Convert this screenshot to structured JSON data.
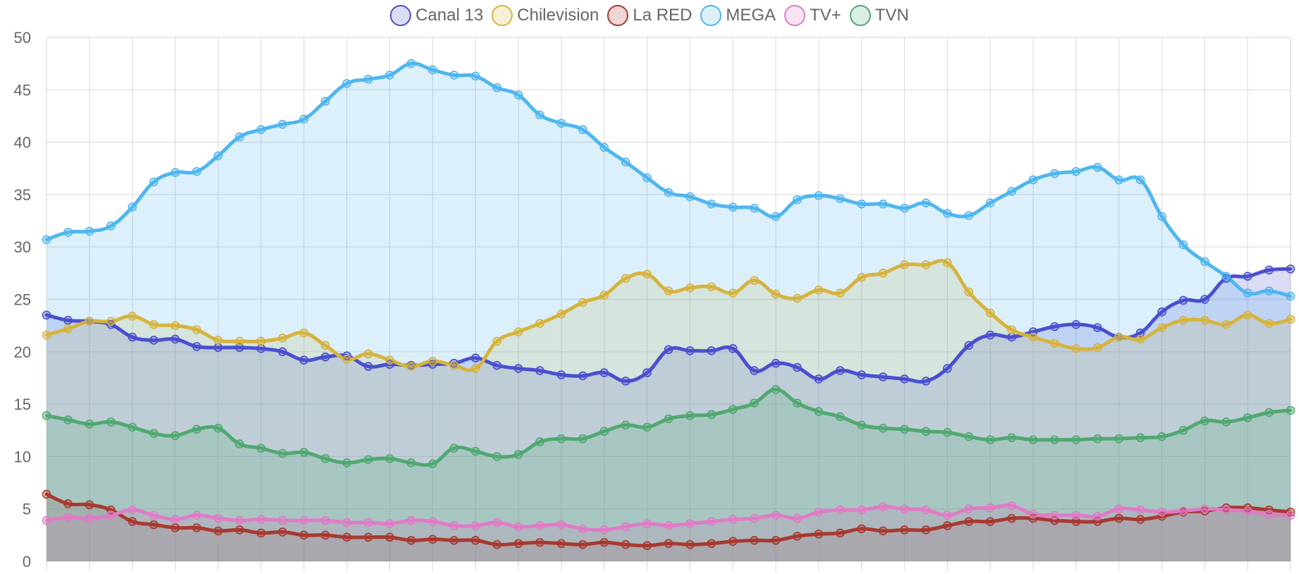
{
  "chart_data": {
    "type": "area",
    "ylim": [
      0,
      50
    ],
    "yticks": [
      0,
      5,
      10,
      15,
      20,
      25,
      30,
      35,
      40,
      45,
      50
    ],
    "grid": true,
    "legend_position": "top-center",
    "x": [
      0,
      1,
      2,
      3,
      4,
      5,
      6,
      7,
      8,
      9,
      10,
      11,
      12,
      13,
      14,
      15,
      16,
      17,
      18,
      19,
      20,
      21,
      22,
      23,
      24,
      25,
      26,
      27,
      28,
      29,
      30,
      31,
      32,
      33,
      34,
      35,
      36,
      37,
      38,
      39,
      40,
      41,
      42,
      43,
      44,
      45,
      46,
      47,
      48,
      49,
      50,
      51,
      52,
      53,
      54,
      55,
      56,
      57,
      58
    ],
    "series": [
      {
        "name": "Canal 13",
        "color": "#4a4fcf",
        "fill": "rgba(74,79,207,0.2)",
        "values": [
          23.5,
          23.0,
          22.9,
          22.6,
          21.4,
          21.1,
          21.2,
          20.5,
          20.4,
          20.4,
          20.3,
          20.0,
          19.2,
          19.5,
          19.6,
          18.6,
          18.8,
          18.7,
          18.8,
          18.9,
          19.4,
          18.7,
          18.4,
          18.2,
          17.8,
          17.7,
          18.0,
          17.2,
          18.0,
          20.2,
          20.1,
          20.1,
          20.3,
          18.2,
          18.9,
          18.5,
          17.4,
          18.2,
          17.8,
          17.6,
          17.4,
          17.2,
          18.4,
          20.6,
          21.6,
          21.4,
          21.9,
          22.4,
          22.6,
          22.3,
          21.4,
          21.8,
          23.8,
          24.9,
          25.0,
          27.0,
          27.2,
          27.8,
          27.9
        ]
      },
      {
        "name": "Chilevision",
        "color": "#d6b33d",
        "fill": "rgba(214,179,61,0.2)",
        "values": [
          21.6,
          22.2,
          22.9,
          22.9,
          23.4,
          22.6,
          22.5,
          22.1,
          21.1,
          21.0,
          21.0,
          21.3,
          21.8,
          20.6,
          19.3,
          19.8,
          19.2,
          18.6,
          19.1,
          18.7,
          18.4,
          21.0,
          21.9,
          22.7,
          23.6,
          24.7,
          25.4,
          27.0,
          27.4,
          25.8,
          26.1,
          26.2,
          25.6,
          26.8,
          25.5,
          25.1,
          25.9,
          25.6,
          27.1,
          27.5,
          28.3,
          28.3,
          28.5,
          25.7,
          23.7,
          22.1,
          21.4,
          20.8,
          20.3,
          20.4,
          21.4,
          21.2,
          22.3,
          23.0,
          23.0,
          22.6,
          23.5,
          22.7,
          23.1
        ]
      },
      {
        "name": "La RED",
        "color": "#a8392f",
        "fill": "rgba(168,57,47,0.2)",
        "values": [
          6.4,
          5.5,
          5.4,
          4.9,
          3.8,
          3.5,
          3.2,
          3.2,
          2.9,
          3.0,
          2.7,
          2.8,
          2.5,
          2.5,
          2.3,
          2.3,
          2.3,
          2.0,
          2.1,
          2.0,
          2.0,
          1.6,
          1.7,
          1.8,
          1.7,
          1.6,
          1.8,
          1.6,
          1.5,
          1.7,
          1.6,
          1.7,
          1.9,
          2.0,
          2.0,
          2.4,
          2.6,
          2.7,
          3.1,
          2.9,
          3.0,
          3.0,
          3.4,
          3.8,
          3.8,
          4.1,
          4.1,
          3.9,
          3.8,
          3.8,
          4.1,
          4.0,
          4.3,
          4.7,
          4.8,
          5.1,
          5.1,
          4.9,
          4.7
        ]
      },
      {
        "name": "MEGA",
        "color": "#4fb6ef",
        "fill": "rgba(79,182,239,0.2)",
        "values": [
          30.7,
          31.4,
          31.5,
          32.0,
          33.8,
          36.2,
          37.1,
          37.2,
          38.7,
          40.5,
          41.2,
          41.7,
          42.2,
          43.9,
          45.6,
          46.0,
          46.4,
          47.5,
          46.9,
          46.4,
          46.3,
          45.2,
          44.5,
          42.6,
          41.8,
          41.2,
          39.5,
          38.1,
          36.6,
          35.2,
          34.8,
          34.1,
          33.8,
          33.7,
          32.9,
          34.5,
          34.9,
          34.6,
          34.1,
          34.1,
          33.7,
          34.2,
          33.2,
          33.0,
          34.2,
          35.3,
          36.4,
          37.0,
          37.2,
          37.6,
          36.4,
          36.4,
          32.9,
          30.2,
          28.6,
          27.2,
          25.6,
          25.8,
          25.3
        ]
      },
      {
        "name": "TV+",
        "color": "#e07ac6",
        "fill": "rgba(224,122,198,0.2)",
        "values": [
          3.9,
          4.2,
          4.1,
          4.4,
          4.9,
          4.4,
          4.0,
          4.4,
          4.1,
          3.9,
          4.0,
          3.9,
          3.9,
          3.9,
          3.7,
          3.7,
          3.6,
          3.9,
          3.8,
          3.4,
          3.4,
          3.7,
          3.3,
          3.4,
          3.5,
          3.1,
          3.0,
          3.3,
          3.6,
          3.4,
          3.6,
          3.8,
          4.0,
          4.1,
          4.4,
          4.1,
          4.7,
          4.9,
          4.9,
          5.2,
          5.0,
          4.9,
          4.4,
          5.0,
          5.1,
          5.3,
          4.5,
          4.4,
          4.4,
          4.3,
          5.0,
          4.9,
          4.7,
          4.8,
          5.0,
          4.9,
          4.8,
          4.5,
          4.4
        ]
      },
      {
        "name": "TVN",
        "color": "#4fa870",
        "fill": "rgba(79,168,112,0.2)",
        "values": [
          13.9,
          13.5,
          13.1,
          13.3,
          12.8,
          12.2,
          12.0,
          12.6,
          12.7,
          11.2,
          10.8,
          10.3,
          10.4,
          9.8,
          9.4,
          9.7,
          9.8,
          9.4,
          9.3,
          10.8,
          10.5,
          10.0,
          10.2,
          11.4,
          11.7,
          11.7,
          12.4,
          13.0,
          12.8,
          13.6,
          13.9,
          14.0,
          14.5,
          15.1,
          16.4,
          15.1,
          14.3,
          13.8,
          13.0,
          12.7,
          12.6,
          12.4,
          12.3,
          11.9,
          11.6,
          11.8,
          11.6,
          11.6,
          11.6,
          11.7,
          11.7,
          11.8,
          11.9,
          12.5,
          13.4,
          13.3,
          13.7,
          14.2,
          14.4
        ]
      }
    ]
  }
}
